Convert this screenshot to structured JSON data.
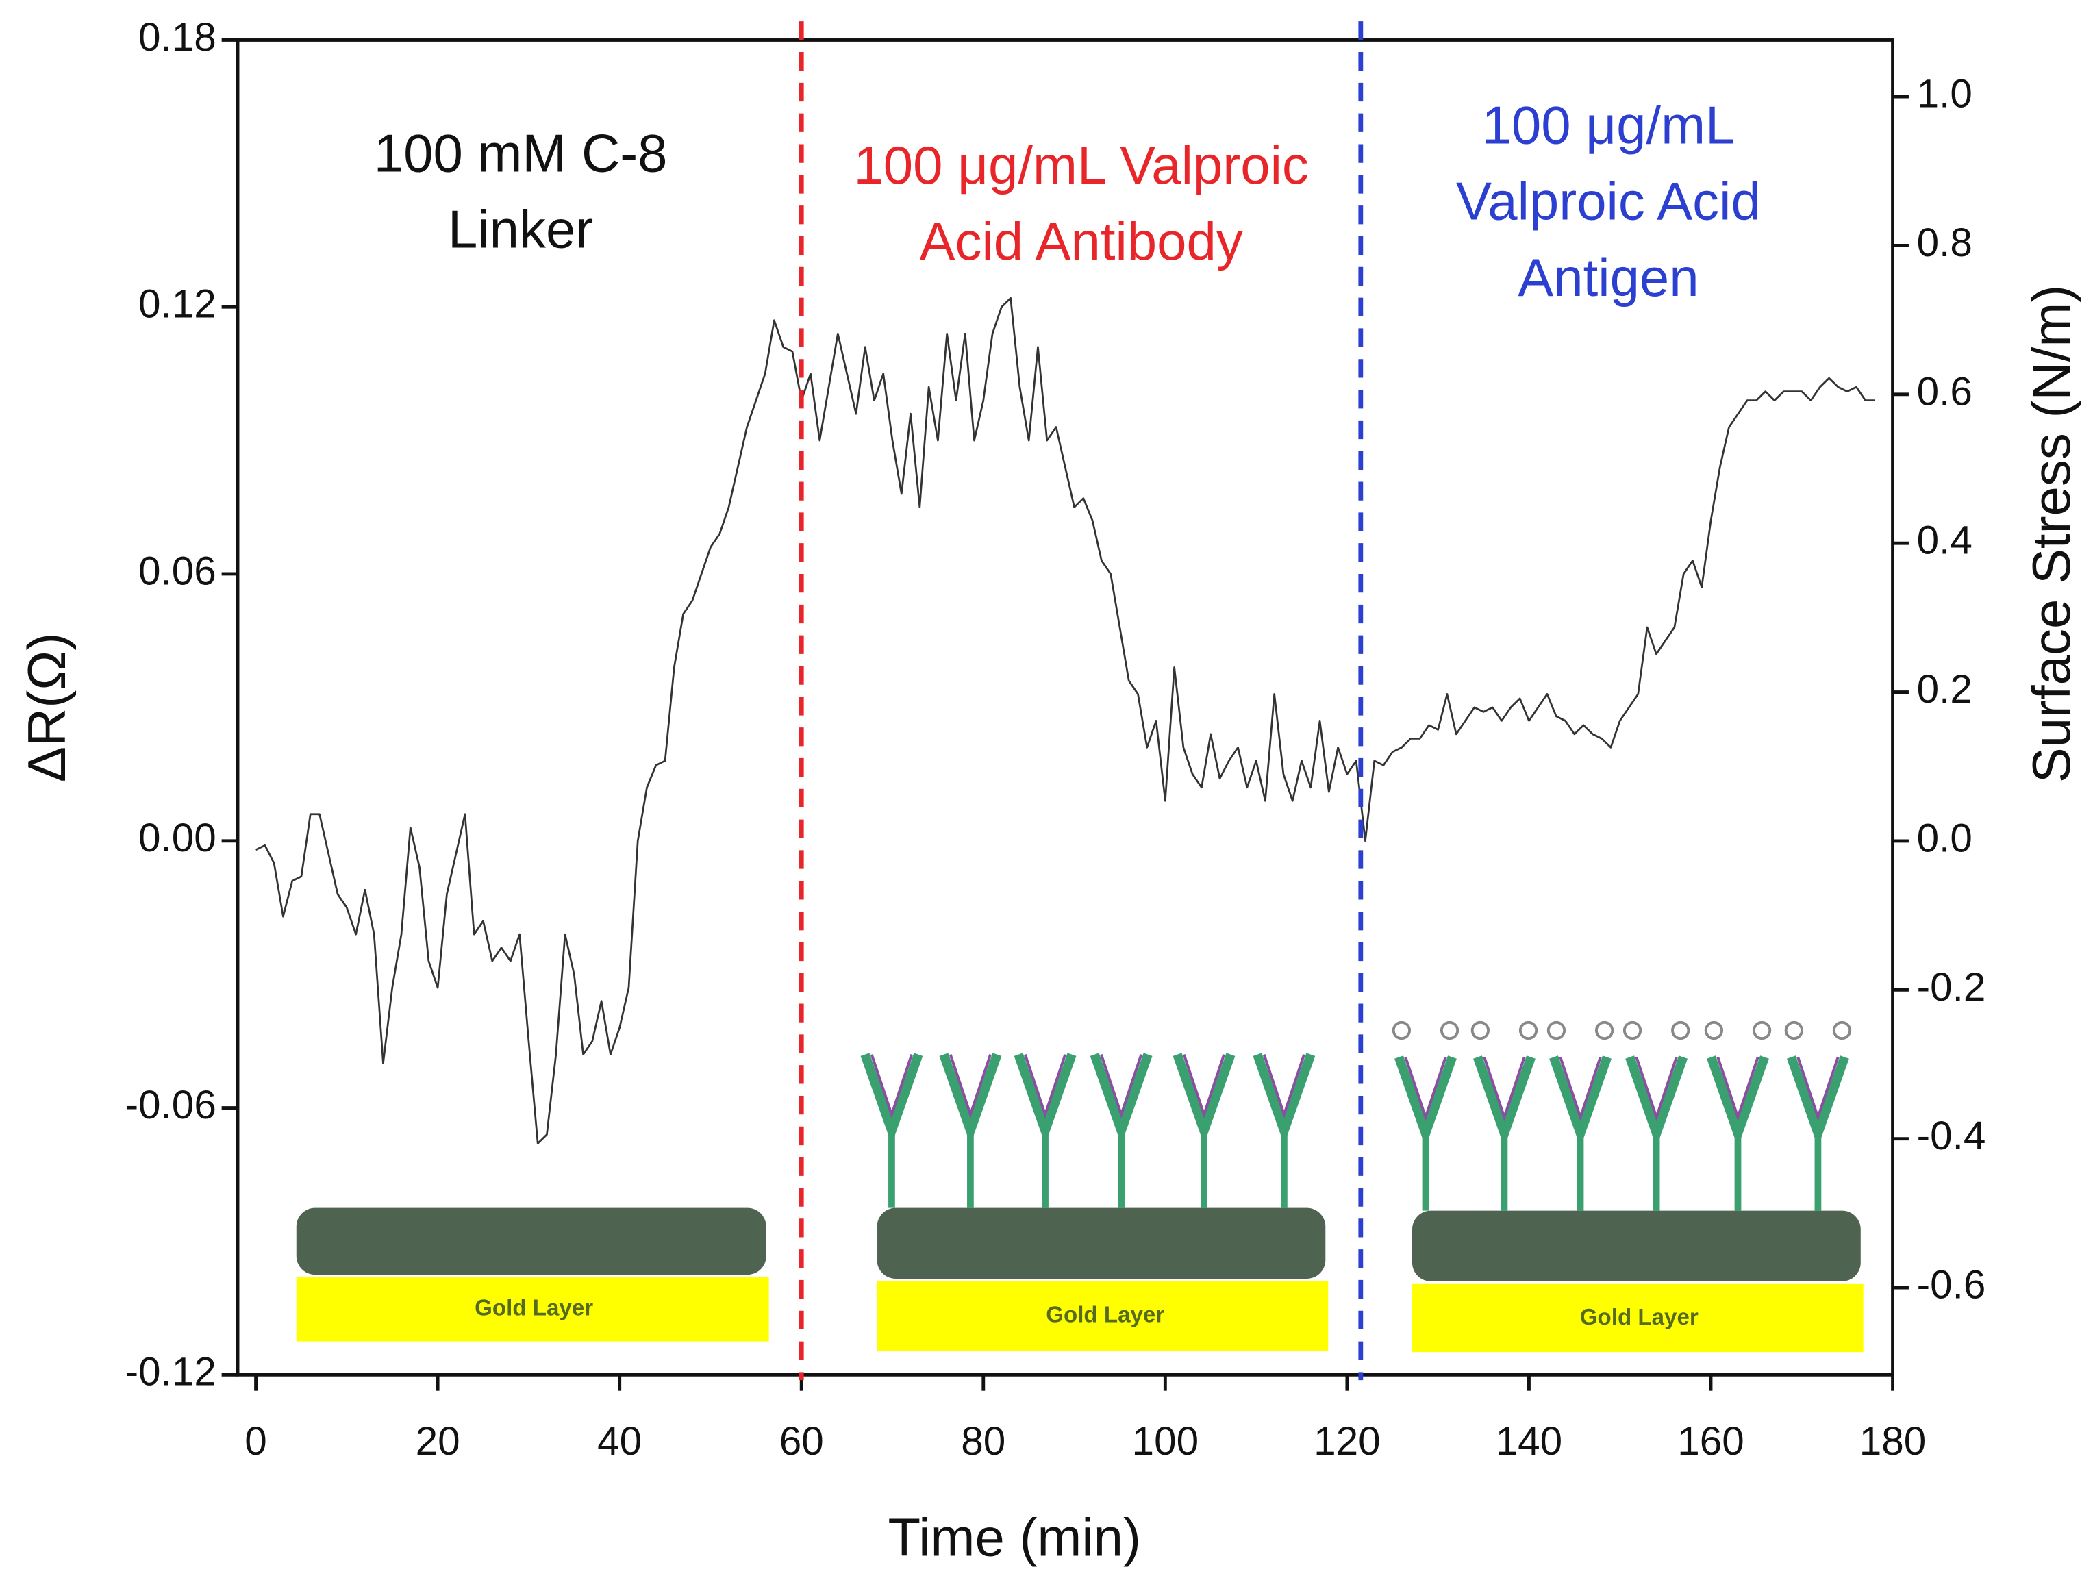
{
  "chart_data": {
    "type": "line",
    "xlabel": "Time (min)",
    "ylabel": "ΔR(Ω)",
    "y2label": "Surface Stress (N/m)",
    "xlim": [
      -2,
      180
    ],
    "xticks": [
      0,
      20,
      40,
      60,
      80,
      100,
      120,
      140,
      160,
      180
    ],
    "ylim": [
      -0.12,
      0.18
    ],
    "yticks": [
      -0.12,
      -0.06,
      {
        "value": 0,
        "label": "0.00"
      },
      0.06,
      0.12,
      0.18
    ],
    "y2lim": [
      -0.717,
      1.076
    ],
    "y2ticks": [
      -0.6,
      -0.4,
      -0.2,
      {
        "value": 0,
        "label": "0.0"
      },
      0.2,
      0.4,
      0.6,
      0.8,
      {
        "value": 1,
        "label": "1.0"
      }
    ],
    "x": [
      0,
      1,
      2,
      3,
      4,
      5,
      6,
      7,
      8,
      9,
      10,
      11,
      12,
      13,
      14,
      15,
      16,
      17,
      18,
      19,
      20,
      21,
      22,
      23,
      24,
      25,
      26,
      27,
      28,
      29,
      30,
      31,
      32,
      33,
      34,
      35,
      36,
      37,
      38,
      39,
      40,
      41,
      42,
      43,
      44,
      45,
      46,
      47,
      48,
      49,
      50,
      51,
      52,
      53,
      54,
      55,
      56,
      57,
      58,
      59,
      60,
      61,
      62,
      63,
      64,
      65,
      66,
      67,
      68,
      69,
      70,
      71,
      72,
      73,
      74,
      75,
      76,
      77,
      78,
      79,
      80,
      81,
      82,
      83,
      84,
      85,
      86,
      87,
      88,
      89,
      90,
      91,
      92,
      93,
      94,
      95,
      96,
      97,
      98,
      99,
      100,
      101,
      102,
      103,
      104,
      105,
      106,
      107,
      108,
      109,
      110,
      111,
      112,
      113,
      114,
      115,
      116,
      117,
      118,
      119,
      120,
      121,
      122,
      123,
      124,
      125,
      126,
      127,
      128,
      129,
      130,
      131,
      132,
      133,
      134,
      135,
      136,
      137,
      138,
      139,
      140,
      141,
      142,
      143,
      144,
      145,
      146,
      147,
      148,
      149,
      150,
      151,
      152,
      153,
      154,
      155,
      156,
      157,
      158,
      159,
      160,
      161,
      162,
      163,
      164,
      165,
      166,
      167,
      168,
      169,
      170,
      171,
      172,
      173,
      174,
      175,
      176,
      177,
      178
    ],
    "series": [
      {
        "name": "ΔR",
        "color": "#333333",
        "values": [
          -0.002,
          -0.001,
          -0.005,
          -0.017,
          -0.009,
          -0.008,
          0.006,
          0.006,
          -0.003,
          -0.012,
          -0.015,
          -0.021,
          -0.011,
          -0.021,
          -0.05,
          -0.033,
          -0.021,
          0.003,
          -0.006,
          -0.027,
          -0.033,
          -0.012,
          -0.003,
          0.006,
          -0.021,
          -0.018,
          -0.027,
          -0.024,
          -0.027,
          -0.021,
          -0.045,
          -0.068,
          -0.066,
          -0.048,
          -0.021,
          -0.03,
          -0.048,
          -0.045,
          -0.036,
          -0.048,
          -0.042,
          -0.033,
          0,
          0.012,
          0.017,
          0.018,
          0.039,
          0.051,
          0.054,
          0.06,
          0.066,
          0.069,
          0.075,
          0.084,
          0.093,
          0.099,
          0.105,
          0.117,
          0.111,
          0.11,
          0.099,
          0.105,
          0.09,
          0.102,
          0.114,
          0.105,
          0.096,
          0.111,
          0.099,
          0.105,
          0.09,
          0.078,
          0.096,
          0.075,
          0.102,
          0.09,
          0.114,
          0.099,
          0.114,
          0.09,
          0.099,
          0.114,
          0.12,
          0.122,
          0.102,
          0.09,
          0.111,
          0.09,
          0.093,
          0.084,
          0.075,
          0.077,
          0.072,
          0.063,
          0.06,
          0.048,
          0.036,
          0.033,
          0.021,
          0.027,
          0.009,
          0.039,
          0.021,
          0.015,
          0.012,
          0.024,
          0.014,
          0.018,
          0.021,
          0.012,
          0.018,
          0.009,
          0.033,
          0.015,
          0.009,
          0.018,
          0.012,
          0.027,
          0.011,
          0.021,
          0.015,
          0.018,
          0,
          0.018,
          0.017,
          0.02,
          0.021,
          0.023,
          0.023,
          0.026,
          0.025,
          0.033,
          0.024,
          0.027,
          0.03,
          0.029,
          0.03,
          0.027,
          0.03,
          0.032,
          0.027,
          0.03,
          0.033,
          0.028,
          0.027,
          0.024,
          0.026,
          0.024,
          0.023,
          0.021,
          0.027,
          0.03,
          0.033,
          0.048,
          0.042,
          0.045,
          0.048,
          0.06,
          0.063,
          0.057,
          0.072,
          0.084,
          0.093,
          0.096,
          0.099,
          0.099,
          0.101,
          0.099,
          0.101,
          0.101,
          0.101,
          0.099,
          0.102,
          0.104,
          0.102,
          0.101,
          0.102,
          0.099,
          0.099
        ]
      }
    ],
    "vlines": [
      {
        "x": 60,
        "color": "#e8262a"
      },
      {
        "x": 121.5,
        "color": "#2b3fd1"
      }
    ],
    "annotations": [
      {
        "lines": [
          "100 mM C-8",
          "Linker"
        ],
        "color": "#111111"
      },
      {
        "lines": [
          "100 μg/mL Valproic",
          "Acid Antibody"
        ],
        "color": "#e8262a"
      },
      {
        "lines": [
          "100 μg/mL",
          "Valproic Acid",
          "Antigen"
        ],
        "color": "#2b3fd1"
      }
    ],
    "schematic_labels": [
      "Gold Layer",
      "Gold Layer",
      "Gold Layer"
    ]
  }
}
